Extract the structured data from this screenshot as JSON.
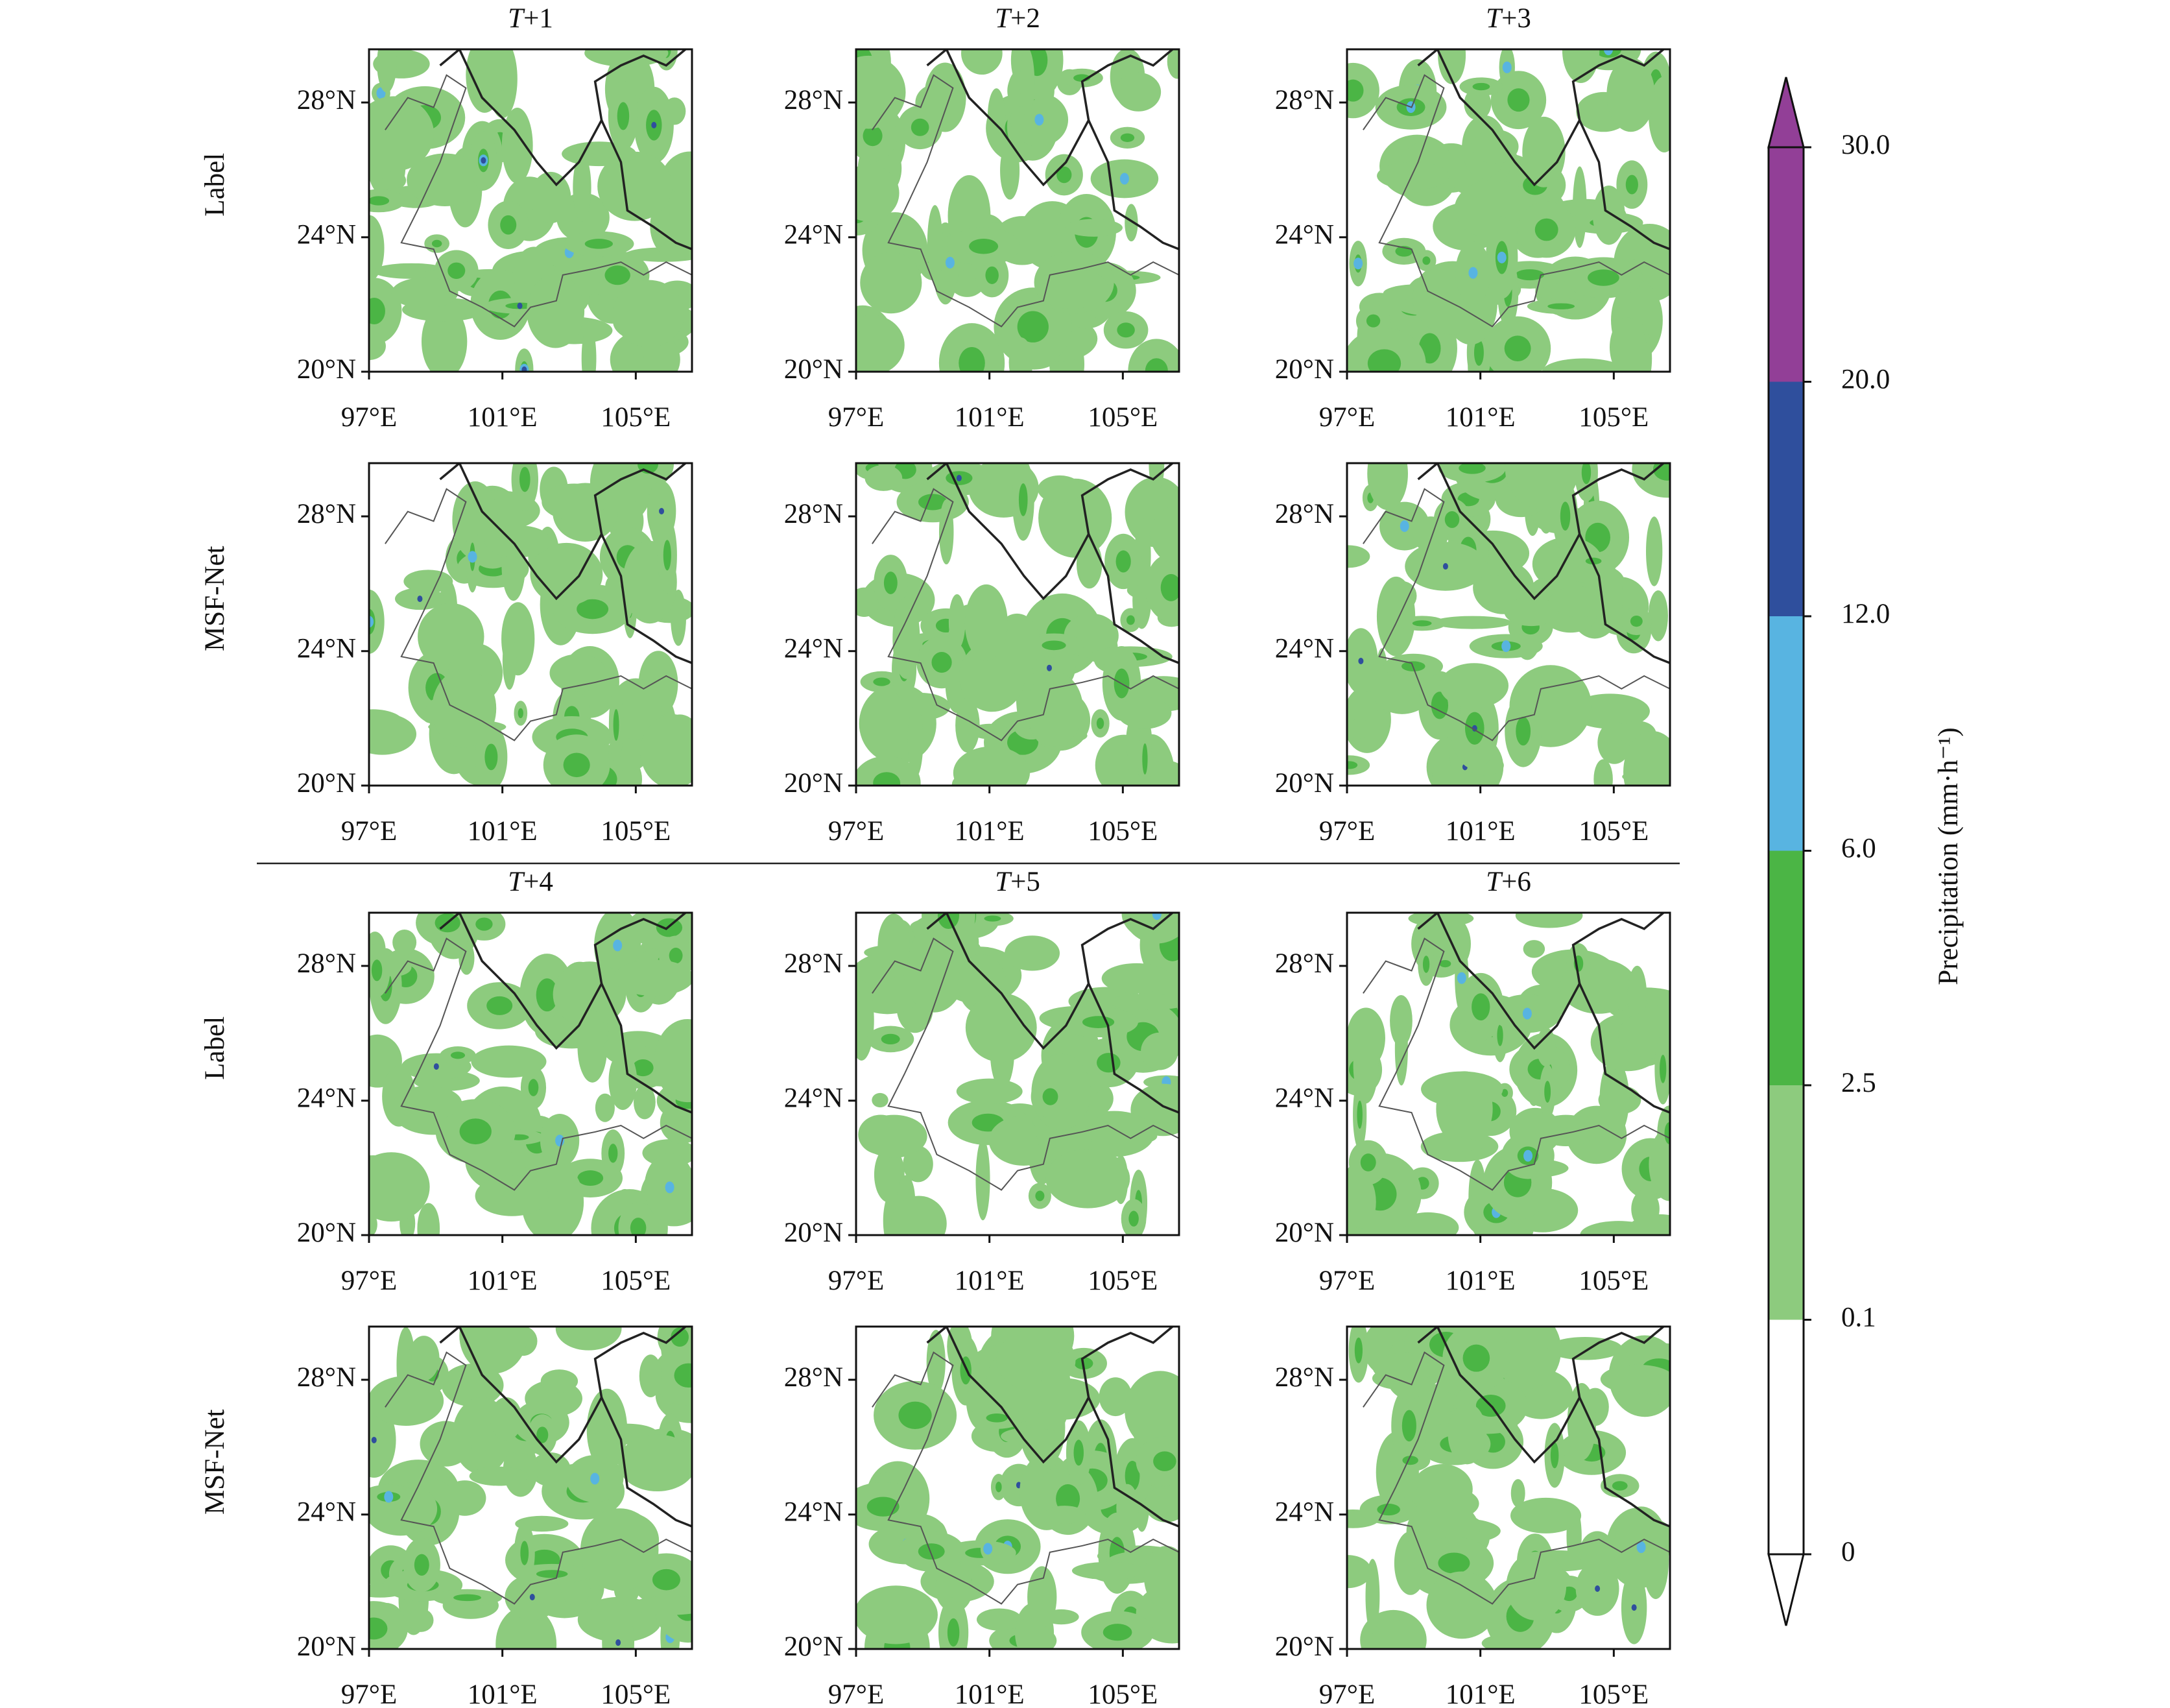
{
  "panels": {
    "columns": [
      {
        "symbol": "T",
        "step": "+1"
      },
      {
        "symbol": "T",
        "step": "+2"
      },
      {
        "symbol": "T",
        "step": "+3"
      },
      {
        "symbol": "T",
        "step": "+4"
      },
      {
        "symbol": "T",
        "step": "+5"
      },
      {
        "symbol": "T",
        "step": "+6"
      }
    ],
    "rows": [
      "Label",
      "MSF-Net"
    ]
  },
  "axes": {
    "lat_ticks": [
      "28°N",
      "24°N",
      "20°N"
    ],
    "lon_ticks": [
      "97°E",
      "101°E",
      "105°E"
    ]
  },
  "colorbar": {
    "title": "Precipitation (mm·h⁻¹)",
    "labels": [
      "0",
      "0.1",
      "2.5",
      "6.0",
      "12.0",
      "20.0",
      "30.0"
    ],
    "colors": [
      "#ffffff",
      "#8dcb7e",
      "#4bb545",
      "#58b4e1",
      "#2f4f9d",
      "#923f97"
    ]
  }
}
